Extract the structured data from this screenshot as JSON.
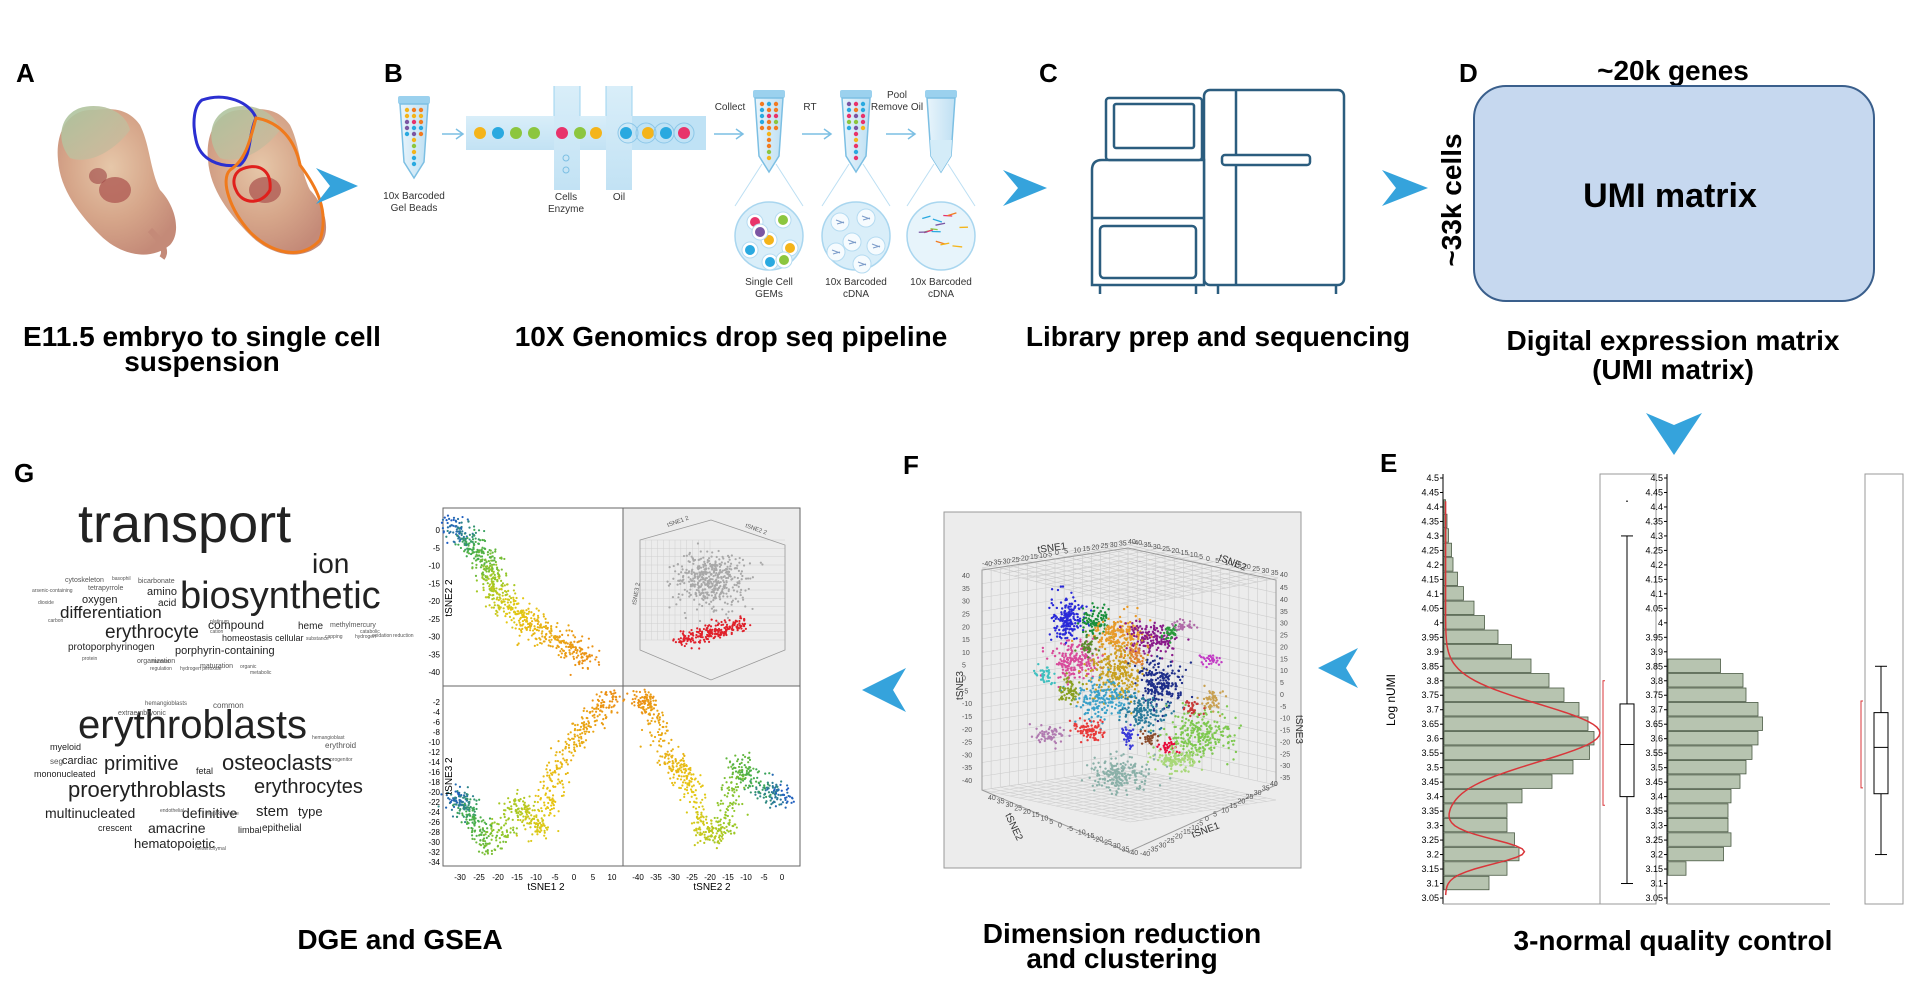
{
  "panels": {
    "A": {
      "letter": "A",
      "caption_line1": "E11.5 embryo to single cell",
      "caption_line2": "suspension"
    },
    "B": {
      "letter": "B",
      "caption": "10X Genomics drop seq pipeline",
      "labels": {
        "gel_beads_1": "10x Barcoded",
        "gel_beads_2": "Gel Beads",
        "cells_1": "Cells",
        "cells_2": "Enzyme",
        "oil": "Oil",
        "collect": "Collect",
        "rt": "RT",
        "pool_1": "Pool",
        "pool_2": "Remove Oil",
        "gems_1": "Single Cell",
        "gems_2": "GEMs",
        "cdna1_1": "10x Barcoded",
        "cdna1_2": "cDNA",
        "cdna2_1": "10x Barcoded",
        "cdna2_2": "cDNA"
      }
    },
    "C": {
      "letter": "C",
      "caption": "Library prep and sequencing"
    },
    "D": {
      "letter": "D",
      "top_label": "~20k genes",
      "side_label": "~33k cells",
      "matrix_label": "UMI matrix",
      "caption_line1": "Digital expression matrix",
      "caption_line2": "(UMI matrix)"
    },
    "E": {
      "letter": "E",
      "caption": "3-normal quality control",
      "ylabel": "Log nUMI",
      "ticks": [
        "4.5",
        "4.45",
        "4.4",
        "4.35",
        "4.3",
        "4.25",
        "4.2",
        "4.15",
        "4.1",
        "4.05",
        "4",
        "3.95",
        "3.9",
        "3.85",
        "3.8",
        "3.75",
        "3.7",
        "3.65",
        "3.6",
        "3.55",
        "3.5",
        "3.45",
        "3.4",
        "3.35",
        "3.3",
        "3.25",
        "3.2",
        "3.15",
        "3.1",
        "3.05"
      ]
    },
    "F": {
      "letter": "F",
      "caption_line1": "Dimension reduction",
      "caption_line2": "and clustering",
      "axis_labels": {
        "tsne1_top": "tSNE1",
        "tsne2_top": "tSNE2",
        "tsne3_left": "tSNE3",
        "tsne3_right": "tSNE3",
        "tsne2_bottom": "tSNE2",
        "tsne1_bottom": "tSNE1"
      }
    },
    "G": {
      "letter": "G",
      "caption": "DGE and GSEA",
      "plot_labels": {
        "tsne2_2": "tSNE2 2",
        "tsne3_2": "tSNE3 2",
        "tsne1_2": "tSNE1 2",
        "tsne2_2b": "tSNE2 2",
        "tsne1_cube": "tSNE1 2",
        "tsne2_cube": "tSNE2 2",
        "tsne3_cube": "tSNE3 2"
      },
      "top_left_yticks": [
        "0",
        "-5",
        "-10",
        "-15",
        "-20",
        "-25",
        "-30",
        "-35",
        "-40"
      ],
      "bottom_left_yticks": [
        "-2",
        "-4",
        "-6",
        "-8",
        "-10",
        "-12",
        "-14",
        "-16",
        "-18",
        "-20",
        "-22",
        "-24",
        "-26",
        "-28",
        "-30",
        "-32",
        "-34"
      ],
      "bottom_left_xticks": [
        "-30",
        "-25",
        "-20",
        "-15",
        "-10",
        "-5",
        "0",
        "5",
        "10"
      ],
      "bottom_right_xticks": [
        "-40",
        "-35",
        "-30",
        "-25",
        "-20",
        "-15",
        "-10",
        "-5",
        "0"
      ]
    }
  },
  "word_cloud": {
    "group1": [
      {
        "w": "transport",
        "s": 54
      },
      {
        "w": "ion",
        "s": 28
      },
      {
        "w": "biosynthetic",
        "s": 38
      },
      {
        "w": "differentiation",
        "s": 17
      },
      {
        "w": "erythrocyte",
        "s": 19
      },
      {
        "w": "oxygen",
        "s": 11
      },
      {
        "w": "amino",
        "s": 11
      },
      {
        "w": "acid",
        "s": 10
      },
      {
        "w": "tetrapyrrole",
        "s": 7
      },
      {
        "w": "bicarbonate",
        "s": 7
      },
      {
        "w": "cytoskeleton",
        "s": 7
      },
      {
        "w": "compound",
        "s": 12
      },
      {
        "w": "heme",
        "s": 10
      },
      {
        "w": "methylmercury",
        "s": 7
      },
      {
        "w": "homeostasis",
        "s": 9
      },
      {
        "w": "cellular",
        "s": 9
      },
      {
        "w": "protoporphyrinogen",
        "s": 10
      },
      {
        "w": "porphyrin-containing",
        "s": 11
      },
      {
        "w": "organization",
        "s": 7
      },
      {
        "w": "maturation",
        "s": 7
      },
      {
        "w": "basophil",
        "s": 5
      },
      {
        "w": "arsenic-containing",
        "s": 5
      },
      {
        "w": "dioxide",
        "s": 5
      },
      {
        "w": "platinum",
        "s": 5
      },
      {
        "w": "cation",
        "s": 5
      },
      {
        "w": "filament",
        "s": 5
      },
      {
        "w": "organic",
        "s": 5
      },
      {
        "w": "capping",
        "s": 5
      },
      {
        "w": "hydrogen",
        "s": 5
      },
      {
        "w": "catabolic",
        "s": 5
      },
      {
        "w": "reduction",
        "s": 5
      },
      {
        "w": "oxidation",
        "s": 5
      },
      {
        "w": "carbon",
        "s": 5
      },
      {
        "w": "substance",
        "s": 5
      },
      {
        "w": "protein",
        "s": 5
      },
      {
        "w": "regulation",
        "s": 5
      },
      {
        "w": "hydrogen peroxide",
        "s": 5
      },
      {
        "w": "metabolic",
        "s": 5
      }
    ],
    "group2": [
      {
        "w": "erythroblasts",
        "s": 40
      },
      {
        "w": "primitive",
        "s": 20
      },
      {
        "w": "osteoclasts",
        "s": 22
      },
      {
        "w": "proerythroblasts",
        "s": 22
      },
      {
        "w": "erythrocytes",
        "s": 20
      },
      {
        "w": "multinucleated",
        "s": 14
      },
      {
        "w": "definitive",
        "s": 14
      },
      {
        "w": "stem",
        "s": 15
      },
      {
        "w": "type",
        "s": 13
      },
      {
        "w": "amacrine",
        "s": 14
      },
      {
        "w": "epithelial",
        "s": 10
      },
      {
        "w": "hematopoietic",
        "s": 13
      },
      {
        "w": "myeloid",
        "s": 9
      },
      {
        "w": "cardiac",
        "s": 11
      },
      {
        "w": "mononucleated",
        "s": 9
      },
      {
        "w": "crescent",
        "s": 9
      },
      {
        "w": "limbal",
        "s": 9
      },
      {
        "w": "fetal",
        "s": 9
      },
      {
        "w": "common",
        "s": 8
      },
      {
        "w": "extraembryonic",
        "s": 7
      },
      {
        "w": "hemangioblasts",
        "s": 6
      },
      {
        "w": "erythroid",
        "s": 8
      },
      {
        "w": "seg",
        "s": 8
      },
      {
        "w": "hemangioblast",
        "s": 5
      },
      {
        "w": "mesenchymal",
        "s": 5
      },
      {
        "w": "megakaryocyte",
        "s": 5
      },
      {
        "w": "endothelial",
        "s": 5
      },
      {
        "w": "progenitor",
        "s": 5
      }
    ]
  },
  "colors": {
    "arrow": "#35a3dc",
    "matrix_fill": "#c6d8ef",
    "matrix_stroke": "#3a5f8c",
    "hist_fill": "#b7c4b0",
    "hist_stroke": "#4a5a44",
    "fit_line": "#d9363a"
  }
}
